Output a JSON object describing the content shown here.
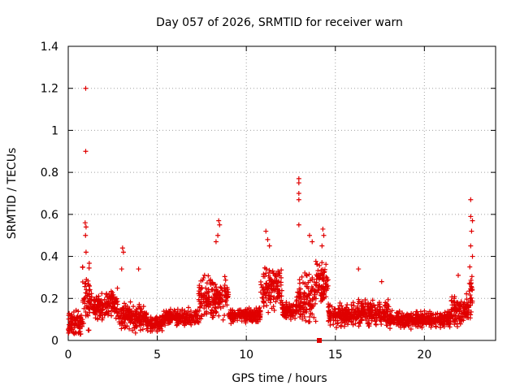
{
  "chart_data": {
    "type": "scatter",
    "title": "Day 057 of 2026, SRMTID for receiver warn",
    "xlabel": "GPS time / hours",
    "ylabel": "SRMTID / TECUs",
    "xlim": [
      0,
      24
    ],
    "ylim": [
      0,
      1.4
    ],
    "x_ticks": [
      0,
      5,
      10,
      15,
      20
    ],
    "y_ticks": [
      0,
      0.2,
      0.4,
      0.6,
      0.8,
      1,
      1.2,
      1.4
    ],
    "x_tick_labels": [
      "0",
      "5",
      "10",
      "15",
      "20"
    ],
    "y_tick_labels": [
      "0",
      "0.2",
      "0.4",
      "0.6",
      "0.8",
      "1",
      "1.2",
      "1.4"
    ],
    "grid": true,
    "marker": "plus",
    "series_color": "#e00000",
    "segments": [
      {
        "x0": 0.0,
        "x1": 0.8,
        "base": 0.08,
        "spread": 0.09
      },
      {
        "x0": 0.8,
        "x1": 1.2,
        "base": 0.2,
        "spread": 0.25
      },
      {
        "x0": 1.2,
        "x1": 2.8,
        "base": 0.17,
        "spread": 0.09
      },
      {
        "x0": 2.8,
        "x1": 3.6,
        "base": 0.12,
        "spread": 0.08
      },
      {
        "x0": 3.6,
        "x1": 4.4,
        "base": 0.1,
        "spread": 0.09
      },
      {
        "x0": 4.4,
        "x1": 5.3,
        "base": 0.08,
        "spread": 0.05
      },
      {
        "x0": 5.3,
        "x1": 7.3,
        "base": 0.11,
        "spread": 0.05
      },
      {
        "x0": 7.3,
        "x1": 8.8,
        "base": 0.2,
        "spread": 0.14
      },
      {
        "x0": 8.8,
        "x1": 9.0,
        "base": 0.22,
        "spread": 0.08
      },
      {
        "x0": 9.0,
        "x1": 10.8,
        "base": 0.12,
        "spread": 0.05
      },
      {
        "x0": 10.8,
        "x1": 12.0,
        "base": 0.25,
        "spread": 0.15
      },
      {
        "x0": 12.0,
        "x1": 12.8,
        "base": 0.14,
        "spread": 0.05
      },
      {
        "x0": 12.8,
        "x1": 13.9,
        "base": 0.2,
        "spread": 0.15
      },
      {
        "x0": 13.9,
        "x1": 14.6,
        "base": 0.28,
        "spread": 0.14
      },
      {
        "x0": 14.6,
        "x1": 16.0,
        "base": 0.12,
        "spread": 0.07
      },
      {
        "x0": 16.0,
        "x1": 18.0,
        "base": 0.13,
        "spread": 0.08
      },
      {
        "x0": 18.0,
        "x1": 21.5,
        "base": 0.1,
        "spread": 0.05
      },
      {
        "x0": 21.5,
        "x1": 22.5,
        "base": 0.14,
        "spread": 0.09
      },
      {
        "x0": 22.5,
        "x1": 22.7,
        "base": 0.2,
        "spread": 0.2
      }
    ],
    "peaks": [
      {
        "x": 0.98,
        "y": 1.2
      },
      {
        "x": 0.98,
        "y": 0.9
      },
      {
        "x": 0.95,
        "y": 0.56
      },
      {
        "x": 1.0,
        "y": 0.54
      },
      {
        "x": 0.97,
        "y": 0.5
      },
      {
        "x": 1.0,
        "y": 0.42
      },
      {
        "x": 3.05,
        "y": 0.44
      },
      {
        "x": 3.1,
        "y": 0.42
      },
      {
        "x": 3.0,
        "y": 0.34
      },
      {
        "x": 3.95,
        "y": 0.34
      },
      {
        "x": 8.45,
        "y": 0.57
      },
      {
        "x": 8.5,
        "y": 0.55
      },
      {
        "x": 8.4,
        "y": 0.5
      },
      {
        "x": 8.3,
        "y": 0.47
      },
      {
        "x": 11.1,
        "y": 0.52
      },
      {
        "x": 11.2,
        "y": 0.48
      },
      {
        "x": 11.3,
        "y": 0.45
      },
      {
        "x": 12.95,
        "y": 0.77
      },
      {
        "x": 12.95,
        "y": 0.75
      },
      {
        "x": 12.95,
        "y": 0.7
      },
      {
        "x": 12.95,
        "y": 0.67
      },
      {
        "x": 12.95,
        "y": 0.55
      },
      {
        "x": 13.55,
        "y": 0.5
      },
      {
        "x": 13.7,
        "y": 0.47
      },
      {
        "x": 14.3,
        "y": 0.53
      },
      {
        "x": 14.35,
        "y": 0.5
      },
      {
        "x": 14.25,
        "y": 0.45
      },
      {
        "x": 16.3,
        "y": 0.34
      },
      {
        "x": 17.6,
        "y": 0.28
      },
      {
        "x": 21.9,
        "y": 0.31
      },
      {
        "x": 22.6,
        "y": 0.67
      },
      {
        "x": 22.6,
        "y": 0.59
      },
      {
        "x": 22.7,
        "y": 0.57
      },
      {
        "x": 22.65,
        "y": 0.52
      },
      {
        "x": 22.6,
        "y": 0.45
      },
      {
        "x": 22.7,
        "y": 0.4
      },
      {
        "x": 22.55,
        "y": 0.35
      }
    ],
    "square_markers": [
      {
        "x": 14.1,
        "y": 0.0
      }
    ]
  }
}
